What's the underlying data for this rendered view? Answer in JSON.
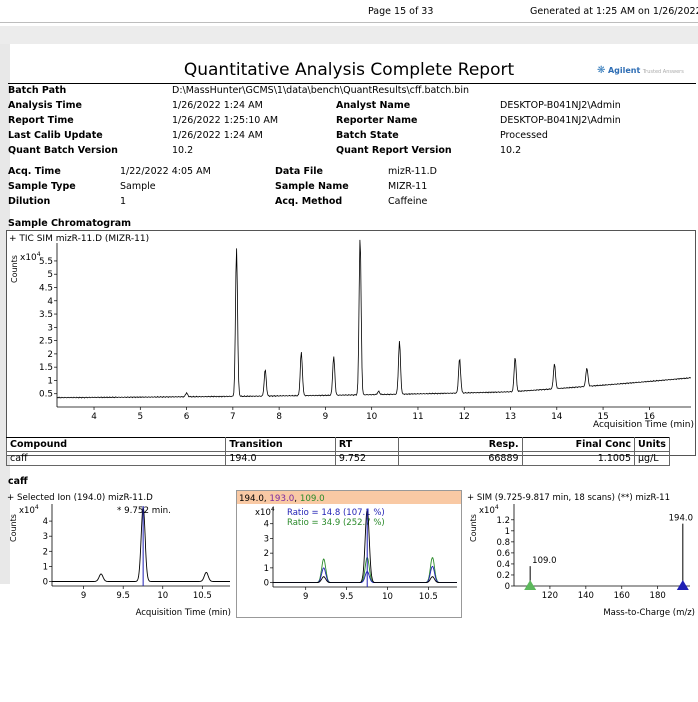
{
  "header": {
    "page": "Page 15 of 33",
    "generated": "Generated at 1:25 AM on 1/26/2022"
  },
  "report": {
    "title": "Quantitative Analysis Complete Report",
    "logo": {
      "brand": "Agilent",
      "sub": "Trusted Answers",
      "icon": "agilent-spark-icon"
    }
  },
  "batch": {
    "batch_path": {
      "label": "Batch Path",
      "value": "D:\\MassHunter\\GCMS\\1\\data\\bench\\QuantResults\\cff.batch.bin"
    },
    "analysis_time": {
      "label": "Analysis Time",
      "value": "1/26/2022 1:24 AM"
    },
    "report_time": {
      "label": "Report Time",
      "value": "1/26/2022 1:25:10 AM"
    },
    "last_calib": {
      "label": "Last Calib Update",
      "value": "1/26/2022 1:24 AM"
    },
    "quant_version": {
      "label": "Quant Batch Version",
      "value": "10.2"
    },
    "analyst": {
      "label": "Analyst Name",
      "value": "DESKTOP-B041NJ2\\Admin"
    },
    "reporter": {
      "label": "Reporter Name",
      "value": "DESKTOP-B041NJ2\\Admin"
    },
    "batch_state": {
      "label": "Batch State",
      "value": "Processed"
    },
    "report_version": {
      "label": "Quant Report Version",
      "value": "10.2"
    }
  },
  "sample": {
    "acq_time": {
      "label": "Acq. Time",
      "value": "1/22/2022 4:05 AM"
    },
    "sample_type": {
      "label": "Sample Type",
      "value": "Sample"
    },
    "dilution": {
      "label": "Dilution",
      "value": "1"
    },
    "data_file": {
      "label": "Data File",
      "value": "mizR-11.D"
    },
    "sample_name": {
      "label": "Sample Name",
      "value": "MIZR-11"
    },
    "acq_method": {
      "label": "Acq. Method",
      "value": "Caffeine"
    }
  },
  "chromatogram": {
    "section_label": "Sample Chromatogram",
    "trace_label": "+ TIC SIM mizR-11.D (MIZR-11)",
    "ylabel": "Counts",
    "yexp": "x10",
    "yexp_power": "4",
    "xlabel": "Acquisition Time (min)"
  },
  "compound_table": {
    "headers": [
      "Compound",
      "Transition",
      "RT",
      "Resp.",
      "Final Conc",
      "Units"
    ],
    "rows": [
      [
        "caff",
        "194.0",
        "9.752",
        "66889",
        "1.1005",
        "µg/L"
      ]
    ]
  },
  "compound_section": {
    "name": "caff",
    "panel1_label": "+ Selected Ion (194.0) mizR-11.D",
    "panel1_annot": "* 9.752 min.",
    "panel1_xlabel": "Acquisition Time (min)",
    "panel2_ions": [
      "194.0",
      "193.0",
      "109.0"
    ],
    "panel2_ratio1": "Ratio = 14.8 (107.1 %)",
    "panel2_ratio2": "Ratio = 34.9 (252.7 %)",
    "panel3_label": "+ SIM (9.725-9.817 min, 18 scans) (**) mizR-11",
    "panel3_xlabel": "Mass-to-Charge (m/z)",
    "panel3_peak1": "109.0",
    "panel3_peak2": "194.0",
    "ylabel": "Counts",
    "yexp": "x10",
    "yexp_power": "4"
  },
  "colors": {
    "trace": "#000000",
    "qual1": "#1f1fb4",
    "qual2": "#2a8a2a",
    "ion_header_bg": "#f9c9a4",
    "ion_193": "#7a2aa0",
    "ion_109": "#2a8a2a",
    "ratio1": "#1f1fb4",
    "ratio2": "#2a8a2a",
    "marker_green": "#5cb85c",
    "marker_blue": "#1f1fb4"
  },
  "chart_data": [
    {
      "type": "line",
      "title": "",
      "xlabel": "Acquisition Time (min)",
      "ylabel": "Counts",
      "xlim": [
        3.2,
        16.9
      ],
      "ylim": [
        0,
        6.1
      ],
      "xticks": [
        4,
        5,
        6,
        7,
        8,
        9,
        10,
        11,
        12,
        13,
        14,
        15,
        16
      ],
      "yticks": [
        0.5,
        1,
        1.5,
        2,
        2.5,
        3,
        3.5,
        4,
        4.5,
        5,
        5.5
      ],
      "ytick_labels": [
        "0.5",
        "1",
        "1.5",
        "2",
        "2.5",
        "3",
        "3.5",
        "4",
        "4.5",
        "5",
        "5.5"
      ],
      "peaks": [
        {
          "rt": 6.0,
          "height": 0.15
        },
        {
          "rt": 7.08,
          "height": 5.6
        },
        {
          "rt": 7.7,
          "height": 1.0
        },
        {
          "rt": 8.48,
          "height": 1.65
        },
        {
          "rt": 9.18,
          "height": 1.45
        },
        {
          "rt": 9.75,
          "height": 5.95
        },
        {
          "rt": 10.15,
          "height": 0.12
        },
        {
          "rt": 10.6,
          "height": 2.0
        },
        {
          "rt": 11.9,
          "height": 1.3
        },
        {
          "rt": 13.1,
          "height": 1.3
        },
        {
          "rt": 13.95,
          "height": 0.95
        },
        {
          "rt": 14.65,
          "height": 0.7
        }
      ]
    },
    {
      "type": "line",
      "title": "",
      "xlabel": "Acquisition Time (min)",
      "ylabel": "Counts",
      "xlim": [
        8.6,
        10.85
      ],
      "ylim": [
        -0.3,
        5.0
      ],
      "xticks": [
        9,
        9.5,
        10,
        10.5
      ],
      "xtick_labels": [
        "9",
        "9.5",
        "10",
        "10.5"
      ],
      "yticks": [
        0,
        1,
        2,
        3,
        4
      ],
      "ytick_labels": [
        "0",
        "1",
        "2",
        "3",
        "4"
      ],
      "peaks": [
        {
          "rt": 9.22,
          "height": 0.5
        },
        {
          "rt": 9.752,
          "height": 4.9
        },
        {
          "rt": 10.55,
          "height": 0.6
        }
      ]
    },
    {
      "type": "line",
      "title": "",
      "xlabel": "",
      "ylabel": "",
      "xlim": [
        8.6,
        10.85
      ],
      "ylim": [
        -0.3,
        5.0
      ],
      "xticks": [
        9,
        9.5,
        10,
        10.5
      ],
      "xtick_labels": [
        "9",
        "9.5",
        "10",
        "10.5"
      ],
      "yticks": [
        0,
        1,
        2,
        3,
        4
      ],
      "ytick_labels": [
        "0",
        "1",
        "2",
        "3",
        "4"
      ],
      "series": [
        {
          "name": "194.0",
          "peaks": [
            {
              "rt": 9.22,
              "height": 0.4
            },
            {
              "rt": 9.752,
              "height": 4.9
            },
            {
              "rt": 10.55,
              "height": 0.4
            }
          ]
        },
        {
          "name": "193.0",
          "peaks": [
            {
              "rt": 9.22,
              "height": 1.0
            },
            {
              "rt": 9.752,
              "height": 0.75
            },
            {
              "rt": 10.55,
              "height": 1.1
            }
          ]
        },
        {
          "name": "109.0",
          "peaks": [
            {
              "rt": 9.22,
              "height": 1.6
            },
            {
              "rt": 9.752,
              "height": 1.7
            },
            {
              "rt": 10.55,
              "height": 1.7
            }
          ]
        }
      ]
    },
    {
      "type": "bar",
      "title": "",
      "xlabel": "Mass-to-Charge (m/z)",
      "ylabel": "Counts",
      "xlim": [
        100,
        198
      ],
      "ylim": [
        0,
        1.45
      ],
      "xticks": [
        120,
        140,
        160,
        180
      ],
      "xtick_labels": [
        "120",
        "140",
        "160",
        "180"
      ],
      "yticks": [
        0,
        0.2,
        0.4,
        0.6,
        0.8,
        1,
        1.2
      ],
      "ytick_labels": [
        "0",
        "0.2",
        "0.4",
        "0.6",
        "0.8",
        "1",
        "1.2"
      ],
      "points": [
        {
          "x": 109.0,
          "y": 0.36
        },
        {
          "x": 194.0,
          "y": 1.13
        }
      ]
    }
  ]
}
